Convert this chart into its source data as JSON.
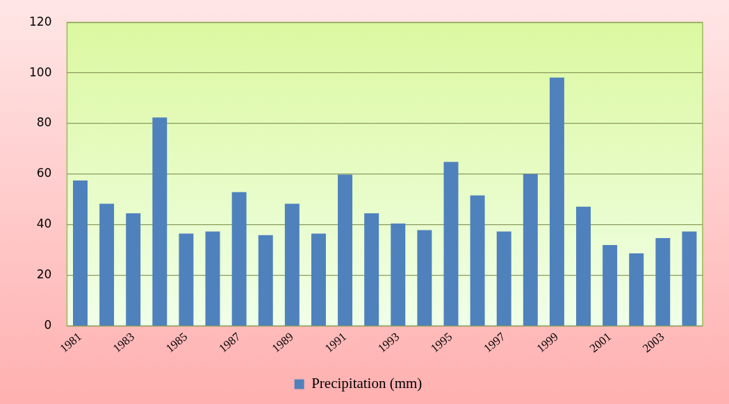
{
  "chart_data": {
    "type": "bar",
    "categories": [
      "1981",
      null,
      "1983",
      null,
      "1985",
      null,
      "1987",
      null,
      "1989",
      null,
      "1991",
      null,
      "1993",
      null,
      "1995",
      null,
      "1997",
      null,
      "1999",
      null,
      "2001",
      null,
      "2003",
      null
    ],
    "series": [
      {
        "name": "Precipitation (mm)",
        "color": "#4f81bd",
        "values": [
          57.5,
          48.3,
          44.5,
          82.4,
          36.5,
          37.3,
          52.9,
          35.9,
          48.3,
          36.5,
          59.8,
          44.5,
          40.5,
          37.9,
          64.8,
          51.6,
          37.3,
          60,
          98.2,
          47.1,
          32,
          28.7,
          34.7,
          37.3
        ]
      }
    ],
    "ylim": [
      0,
      120
    ],
    "yticks": [
      0,
      20,
      40,
      60,
      80,
      100,
      120
    ],
    "grid": "y",
    "legend": "bottom"
  }
}
